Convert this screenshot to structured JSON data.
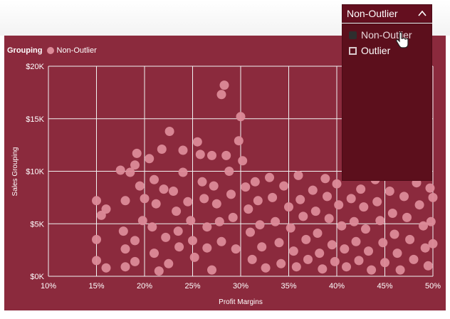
{
  "colors": {
    "chart_background": "#8b2a3d",
    "point_color": "#dc8a98",
    "grid_color": "#f2f2f2",
    "dropdown_background": "#5c0f1c",
    "slicer_background": "#640f1f"
  },
  "slicer": {
    "selected_value": "Non-Outlier",
    "toggle_icon": "chevron-up-icon",
    "options": [
      {
        "label": "Non-Outlier",
        "selected": true
      },
      {
        "label": "Outlier",
        "selected": false
      }
    ]
  },
  "legend": {
    "title": "Grouping",
    "item": "Non-Outlier"
  },
  "chart_data": {
    "type": "scatter",
    "xlabel": "Profit Margins",
    "ylabel": "Sales Grouping",
    "x_ticks": [
      "10%",
      "15%",
      "20%",
      "25%",
      "30%",
      "35%",
      "40%",
      "45%",
      "50%"
    ],
    "y_ticks": [
      "$0K",
      "$5K",
      "$10K",
      "$15K",
      "$20K"
    ],
    "xlim": [
      0.1,
      0.5
    ],
    "ylim": [
      0,
      20000
    ],
    "grid": true,
    "legend_position": "top-left",
    "series": [
      {
        "name": "Non-Outlier",
        "points": [
          [
            0.15,
            7200
          ],
          [
            0.155,
            5800
          ],
          [
            0.16,
            6400
          ],
          [
            0.15,
            3500
          ],
          [
            0.15,
            1500
          ],
          [
            0.16,
            800
          ],
          [
            0.175,
            10100
          ],
          [
            0.18,
            7200
          ],
          [
            0.178,
            4300
          ],
          [
            0.18,
            2600
          ],
          [
            0.18,
            900
          ],
          [
            0.185,
            9900
          ],
          [
            0.19,
            10600
          ],
          [
            0.192,
            11700
          ],
          [
            0.195,
            8600
          ],
          [
            0.198,
            5300
          ],
          [
            0.19,
            3400
          ],
          [
            0.19,
            1400
          ],
          [
            0.2,
            7400
          ],
          [
            0.205,
            11200
          ],
          [
            0.21,
            9200
          ],
          [
            0.212,
            6900
          ],
          [
            0.208,
            4700
          ],
          [
            0.21,
            2200
          ],
          [
            0.215,
            500
          ],
          [
            0.218,
            12100
          ],
          [
            0.22,
            8300
          ],
          [
            0.222,
            3700
          ],
          [
            0.225,
            1200
          ],
          [
            0.226,
            13800
          ],
          [
            0.23,
            8100
          ],
          [
            0.233,
            6200
          ],
          [
            0.235,
            4300
          ],
          [
            0.236,
            2800
          ],
          [
            0.24,
            9900
          ],
          [
            0.24,
            12000
          ],
          [
            0.245,
            7100
          ],
          [
            0.248,
            5300
          ],
          [
            0.25,
            3400
          ],
          [
            0.252,
            1800
          ],
          [
            0.255,
            12800
          ],
          [
            0.258,
            11600
          ],
          [
            0.26,
            9000
          ],
          [
            0.262,
            7400
          ],
          [
            0.265,
            4700
          ],
          [
            0.265,
            2700
          ],
          [
            0.27,
            600
          ],
          [
            0.27,
            11500
          ],
          [
            0.272,
            8600
          ],
          [
            0.275,
            6900
          ],
          [
            0.278,
            5200
          ],
          [
            0.28,
            3300
          ],
          [
            0.28,
            17300
          ],
          [
            0.283,
            18200
          ],
          [
            0.285,
            11500
          ],
          [
            0.288,
            10000
          ],
          [
            0.29,
            7800
          ],
          [
            0.292,
            5600
          ],
          [
            0.295,
            2600
          ],
          [
            0.298,
            12900
          ],
          [
            0.3,
            15200
          ],
          [
            0.302,
            11000
          ],
          [
            0.305,
            8500
          ],
          [
            0.308,
            6400
          ],
          [
            0.31,
            4200
          ],
          [
            0.312,
            1600
          ],
          [
            0.315,
            9000
          ],
          [
            0.318,
            7200
          ],
          [
            0.32,
            4900
          ],
          [
            0.322,
            2800
          ],
          [
            0.326,
            800
          ],
          [
            0.33,
            9400
          ],
          [
            0.333,
            7500
          ],
          [
            0.336,
            5200
          ],
          [
            0.34,
            3200
          ],
          [
            0.342,
            1200
          ],
          [
            0.345,
            8600
          ],
          [
            0.35,
            6600
          ],
          [
            0.352,
            4600
          ],
          [
            0.355,
            2400
          ],
          [
            0.358,
            900
          ],
          [
            0.36,
            9600
          ],
          [
            0.362,
            7300
          ],
          [
            0.365,
            5700
          ],
          [
            0.368,
            3500
          ],
          [
            0.37,
            1600
          ],
          [
            0.375,
            8200
          ],
          [
            0.378,
            6200
          ],
          [
            0.38,
            4100
          ],
          [
            0.382,
            2200
          ],
          [
            0.385,
            700
          ],
          [
            0.388,
            9300
          ],
          [
            0.39,
            7600
          ],
          [
            0.392,
            5500
          ],
          [
            0.395,
            3000
          ],
          [
            0.398,
            1400
          ],
          [
            0.4,
            8800
          ],
          [
            0.402,
            6800
          ],
          [
            0.405,
            4800
          ],
          [
            0.408,
            2600
          ],
          [
            0.41,
            900
          ],
          [
            0.413,
            9900
          ],
          [
            0.415,
            7400
          ],
          [
            0.418,
            5200
          ],
          [
            0.42,
            3300
          ],
          [
            0.423,
            1500
          ],
          [
            0.425,
            8300
          ],
          [
            0.428,
            6600
          ],
          [
            0.43,
            4500
          ],
          [
            0.433,
            2400
          ],
          [
            0.436,
            600
          ],
          [
            0.44,
            9200
          ],
          [
            0.442,
            7100
          ],
          [
            0.445,
            5300
          ],
          [
            0.448,
            3200
          ],
          [
            0.45,
            1300
          ],
          [
            0.455,
            8100
          ],
          [
            0.458,
            6000
          ],
          [
            0.46,
            4000
          ],
          [
            0.463,
            2200
          ],
          [
            0.466,
            600
          ],
          [
            0.47,
            7600
          ],
          [
            0.473,
            5600
          ],
          [
            0.476,
            3500
          ],
          [
            0.48,
            1600
          ],
          [
            0.483,
            8900
          ],
          [
            0.486,
            6800
          ],
          [
            0.49,
            4800
          ],
          [
            0.492,
            2700
          ],
          [
            0.495,
            1000
          ],
          [
            0.5,
            7500
          ],
          [
            0.498,
            5200
          ],
          [
            0.5,
            3100
          ],
          [
            0.497,
            8400
          ]
        ]
      }
    ]
  }
}
